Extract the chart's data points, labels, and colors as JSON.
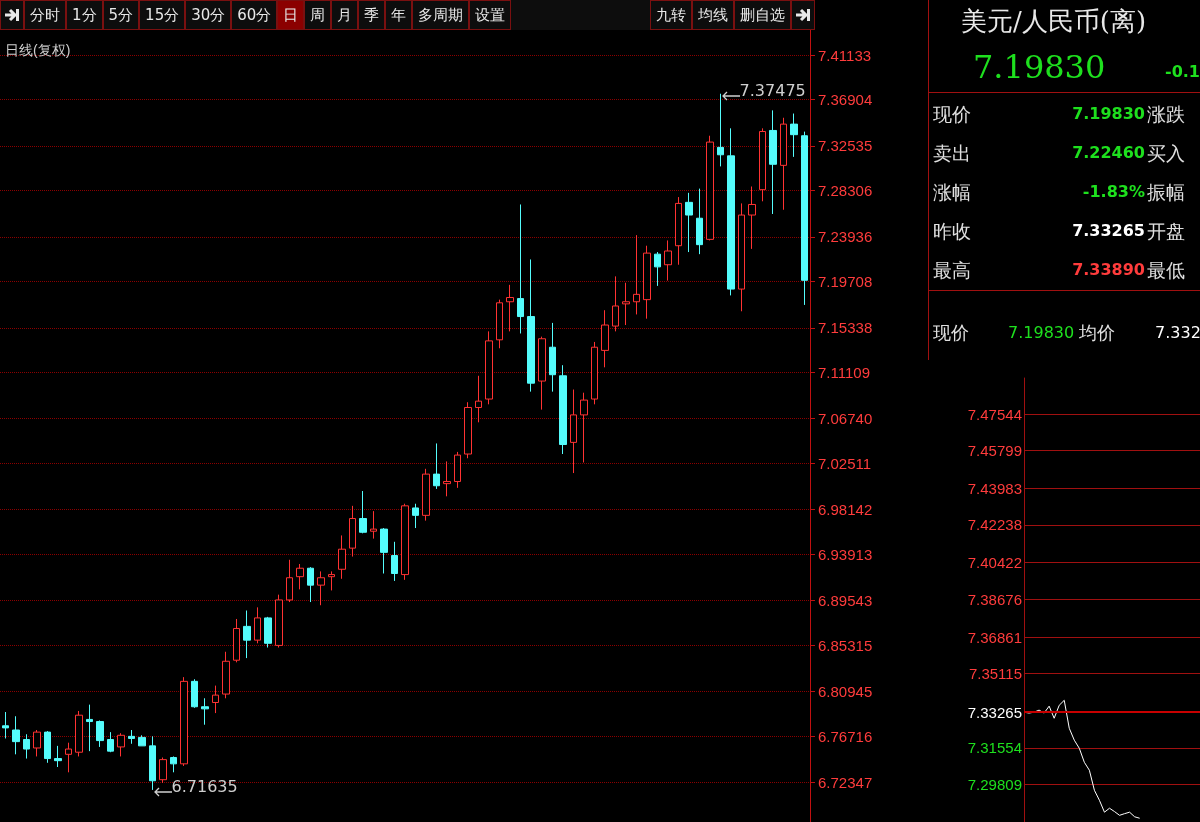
{
  "chart_data": [
    {
      "type": "other",
      "annotations": [
        "分时",
        "1分",
        "5分",
        "15分",
        "30分",
        "60分",
        "日",
        "周",
        "月",
        "季",
        "年",
        "多周期",
        "设置",
        "九转",
        "均线",
        "删自选"
      ]
    },
    {
      "type": "candlestick",
      "title": "日线(复权)",
      "categories": [
        null,
        null,
        null,
        null,
        null,
        null,
        null,
        null,
        null,
        null,
        null,
        null,
        null,
        null,
        null,
        null,
        null,
        null,
        null,
        null,
        null,
        null,
        null,
        null,
        null,
        null,
        null,
        null,
        null,
        null,
        null,
        null,
        null,
        null,
        null,
        null,
        null,
        null,
        null,
        null,
        null,
        null,
        null,
        null,
        null,
        null,
        null,
        null,
        null,
        null,
        null,
        null,
        null,
        null,
        null,
        null,
        null,
        null,
        null,
        null,
        null,
        null,
        null,
        null,
        null,
        null,
        null,
        null,
        null,
        null,
        null,
        null,
        null,
        null,
        null,
        null,
        null
      ],
      "ohlc": [
        [
          6.777,
          6.79,
          6.765,
          6.775
        ],
        [
          6.773,
          6.786,
          6.75,
          6.762
        ],
        [
          6.764,
          6.769,
          6.746,
          6.755
        ],
        [
          6.756,
          6.773,
          6.748,
          6.771
        ],
        [
          6.771,
          6.772,
          6.742,
          6.746
        ],
        [
          6.746,
          6.758,
          6.738,
          6.744
        ],
        [
          6.75,
          6.761,
          6.733,
          6.755
        ],
        [
          6.752,
          6.791,
          6.748,
          6.787
        ],
        [
          6.783,
          6.797,
          6.753,
          6.781
        ],
        [
          6.781,
          6.782,
          6.757,
          6.763
        ],
        [
          6.764,
          6.771,
          6.752,
          6.753
        ],
        [
          6.757,
          6.77,
          6.748,
          6.768
        ],
        [
          6.767,
          6.773,
          6.76,
          6.765
        ],
        [
          6.766,
          6.768,
          6.758,
          6.758
        ],
        [
          6.758,
          6.767,
          6.71635,
          6.725
        ],
        [
          6.726,
          6.747,
          6.723,
          6.745
        ],
        [
          6.747,
          6.748,
          6.733,
          6.741
        ],
        [
          6.741,
          6.823,
          6.739,
          6.819
        ],
        [
          6.819,
          6.821,
          6.794,
          6.795
        ],
        [
          6.795,
          6.803,
          6.778,
          6.793
        ],
        [
          6.799,
          6.815,
          6.789,
          6.806
        ],
        [
          6.807,
          6.847,
          6.803,
          6.838
        ],
        [
          6.839,
          6.878,
          6.837,
          6.869
        ],
        [
          6.871,
          6.886,
          6.841,
          6.858
        ],
        [
          6.858,
          6.889,
          6.855,
          6.879
        ],
        [
          6.879,
          6.88,
          6.851,
          6.855
        ],
        [
          6.853,
          6.901,
          6.851,
          6.896
        ],
        [
          6.896,
          6.934,
          6.894,
          6.917
        ],
        [
          6.918,
          6.93,
          6.906,
          6.926
        ],
        [
          6.926,
          6.927,
          6.894,
          6.91
        ],
        [
          6.91,
          6.923,
          6.891,
          6.917
        ],
        [
          6.918,
          6.923,
          6.905,
          6.92
        ],
        [
          6.925,
          6.957,
          6.916,
          6.944
        ],
        [
          6.945,
          6.985,
          6.937,
          6.973
        ],
        [
          6.973,
          6.999,
          6.959,
          6.96
        ],
        [
          6.961,
          6.98,
          6.954,
          6.963
        ],
        [
          6.963,
          6.964,
          6.921,
          6.941
        ],
        [
          6.938,
          6.951,
          6.914,
          6.921
        ],
        [
          6.92,
          6.987,
          6.915,
          6.985
        ],
        [
          6.983,
          6.987,
          6.964,
          6.976
        ],
        [
          6.976,
          7.02,
          6.971,
          7.015
        ],
        [
          7.015,
          7.044,
          7.001,
          7.004
        ],
        [
          7.006,
          7.027,
          6.994,
          7.008
        ],
        [
          7.008,
          7.036,
          7.002,
          7.033
        ],
        [
          7.034,
          7.083,
          7.03,
          7.078
        ],
        [
          7.078,
          7.108,
          7.064,
          7.084
        ],
        [
          7.086,
          7.15,
          7.081,
          7.141
        ],
        [
          7.142,
          7.18,
          7.134,
          7.177
        ],
        [
          7.178,
          7.194,
          7.15,
          7.182
        ],
        [
          7.181,
          7.27,
          7.148,
          7.164
        ],
        [
          7.164,
          7.218,
          7.093,
          7.101
        ],
        [
          7.103,
          7.145,
          7.076,
          7.143
        ],
        [
          7.135,
          7.158,
          7.093,
          7.109
        ],
        [
          7.108,
          7.118,
          7.034,
          7.043
        ],
        [
          7.045,
          7.095,
          7.016,
          7.071
        ],
        [
          7.071,
          7.092,
          7.026,
          7.085
        ],
        [
          7.086,
          7.14,
          7.081,
          7.135
        ],
        [
          7.132,
          7.17,
          7.116,
          7.156
        ],
        [
          7.155,
          7.202,
          7.15,
          7.174
        ],
        [
          7.176,
          7.196,
          7.156,
          7.178
        ],
        [
          7.178,
          7.241,
          7.166,
          7.185
        ],
        [
          7.18,
          7.231,
          7.162,
          7.224
        ],
        [
          7.223,
          7.225,
          7.193,
          7.211
        ],
        [
          7.213,
          7.236,
          7.198,
          7.226
        ],
        [
          7.231,
          7.277,
          7.213,
          7.271
        ],
        [
          7.272,
          7.281,
          7.225,
          7.26
        ],
        [
          7.257,
          7.285,
          7.223,
          7.232
        ],
        [
          7.237,
          7.335,
          7.236,
          7.329
        ],
        [
          7.324,
          7.37475,
          7.306,
          7.317
        ],
        [
          7.316,
          7.342,
          7.184,
          7.19
        ],
        [
          7.19,
          7.271,
          7.169,
          7.26
        ],
        [
          7.26,
          7.287,
          7.228,
          7.27
        ],
        [
          7.284,
          7.342,
          7.273,
          7.339
        ],
        [
          7.34,
          7.359,
          7.261,
          7.308
        ],
        [
          7.307,
          7.352,
          7.265,
          7.346
        ],
        [
          7.346,
          7.356,
          7.315,
          7.336
        ],
        [
          7.335,
          7.3389,
          7.175,
          7.1983
        ]
      ],
      "colors": [
        "#54fcfc",
        "#54fcfc",
        "#54fcfc",
        "#ff3232",
        "#54fcfc",
        "#54fcfc",
        "#ff3232",
        "#ff3232",
        "#54fcfc",
        "#54fcfc",
        "#54fcfc",
        "#ff3232",
        "#54fcfc",
        "#54fcfc",
        "#54fcfc",
        "#ff3232",
        "#54fcfc",
        "#ff3232",
        "#54fcfc",
        "#54fcfc",
        "#ff3232",
        "#ff3232",
        "#ff3232",
        "#54fcfc",
        "#ff3232",
        "#54fcfc",
        "#ff3232",
        "#ff3232",
        "#ff3232",
        "#54fcfc",
        "#ff3232",
        "#ff3232",
        "#ff3232",
        "#ff3232",
        "#54fcfc",
        "#ff3232",
        "#54fcfc",
        "#54fcfc",
        "#ff3232",
        "#54fcfc",
        "#ff3232",
        "#54fcfc",
        "#ff3232",
        "#ff3232",
        "#ff3232",
        "#ff3232",
        "#ff3232",
        "#ff3232",
        "#ff3232",
        "#54fcfc",
        "#54fcfc",
        "#ff3232",
        "#54fcfc",
        "#54fcfc",
        "#ff3232",
        "#ff3232",
        "#ff3232",
        "#ff3232",
        "#ff3232",
        "#ff3232",
        "#ff3232",
        "#ff3232",
        "#54fcfc",
        "#ff3232",
        "#ff3232",
        "#54fcfc",
        "#54fcfc",
        "#ff3232",
        "#54fcfc",
        "#54fcfc",
        "#ff3232",
        "#ff3232",
        "#ff3232",
        "#54fcfc",
        "#ff3232",
        "#54fcfc",
        "#54fcfc"
      ],
      "ylim": [
        6.686,
        7.435
      ],
      "yticks": [
        6.72347,
        6.76716,
        6.80945,
        6.85315,
        6.89543,
        6.93913,
        6.98142,
        7.02511,
        {
          "value": 7.0674,
          "label": "7.06740"
        },
        7.11109,
        7.15338,
        7.19708,
        7.23936,
        7.28306,
        7.32535,
        7.36904,
        7.41133
      ],
      "annotations": [
        "7.37475",
        "6.71635"
      ],
      "grid": "y",
      "tick_labels": "y"
    },
    {
      "type": "other",
      "title": "美元/人民币(离)",
      "annotations": [
        "7.19830",
        "-0.1",
        "现价",
        "7.19830",
        "涨跌",
        "卖出",
        "7.22460",
        "买入",
        "涨幅",
        "-1.83%",
        "振幅",
        "昨收",
        "7.33265",
        "开盘",
        "最高",
        "7.33890",
        "最低",
        "现价",
        "7.19830",
        "均价",
        "7.332"
      ],
      "colors": [
        "#1ee01e",
        "#1ee01e",
        "#e0e0e0",
        "#1ee01e",
        "#e0e0e0",
        "#e0e0e0",
        "#1ee01e",
        "#e0e0e0",
        "#e0e0e0",
        "#1ee01e",
        "#e0e0e0",
        "#e0e0e0",
        "#ffffff",
        "#e0e0e0",
        "#e0e0e0",
        "#ff3c3c",
        "#e0e0e0",
        "#e0e0e0",
        "#1ee01e",
        "#e0e0e0",
        "#ffffff"
      ]
    },
    {
      "type": "line",
      "categories": [
        null,
        null,
        null,
        null,
        null,
        null,
        null,
        null,
        null,
        null,
        null,
        null,
        null,
        null,
        null,
        null,
        null,
        null,
        null,
        null,
        null,
        null,
        null,
        null,
        null,
        null,
        null,
        null,
        null,
        null,
        null,
        null,
        null,
        null,
        null,
        null
      ],
      "series": [
        {
          "color": "#ffffff",
          "values": [
            7.3326,
            7.3322,
            7.3326,
            7.3336,
            7.3322,
            7.3355,
            7.3297,
            7.3359,
            7.3383,
            7.3249,
            7.3192,
            7.3153,
            7.3086,
            7.3048,
            7.2952,
            7.2904,
            7.2847,
            7.2866,
            7.285,
            7.2832,
            7.284,
            7.2847,
            7.2825,
            7.2818,
            null,
            null,
            null,
            null,
            null,
            null,
            null,
            null,
            null,
            null,
            null,
            null
          ]
        }
      ],
      "ylim": [
        7.28,
        7.4927
      ],
      "yticks": [
        7.29809,
        7.31554,
        7.33265,
        7.35115,
        7.36861,
        7.38676,
        7.40422,
        7.42238,
        7.43983,
        7.45799,
        7.47544
      ],
      "ref_lines": [
        {
          "axis": "y",
          "value": 7.33265,
          "color": "#c80000"
        }
      ],
      "grid": "y",
      "tick_labels": "y"
    }
  ]
}
